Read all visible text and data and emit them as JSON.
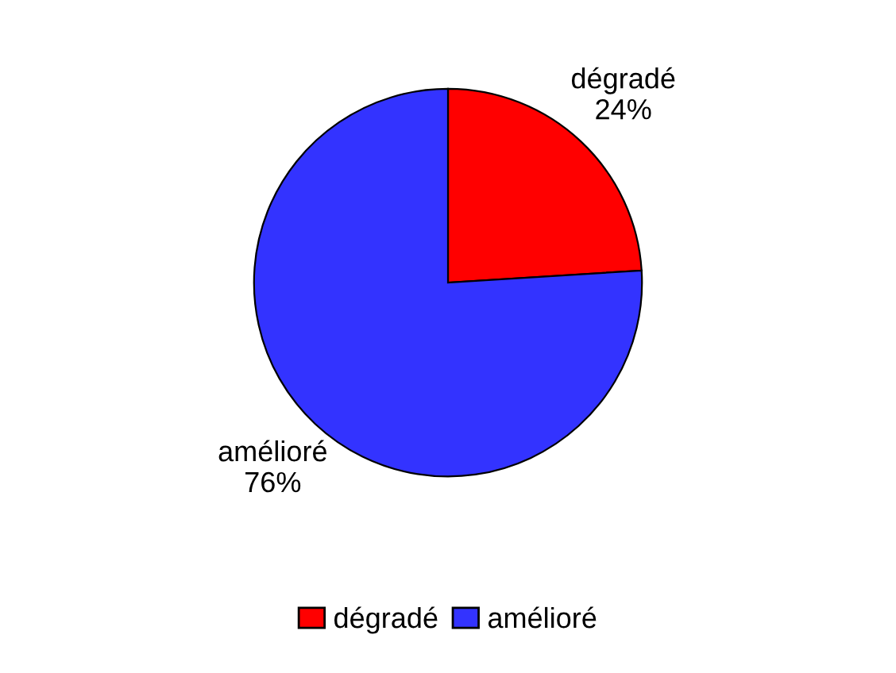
{
  "chart_data": {
    "type": "pie",
    "categories": [
      "dégradé",
      "amélioré"
    ],
    "values": [
      24,
      76
    ],
    "value_labels": [
      "24%",
      "76%"
    ],
    "colors": [
      "#ff0000",
      "#3333ff"
    ],
    "legend": "bottom"
  }
}
